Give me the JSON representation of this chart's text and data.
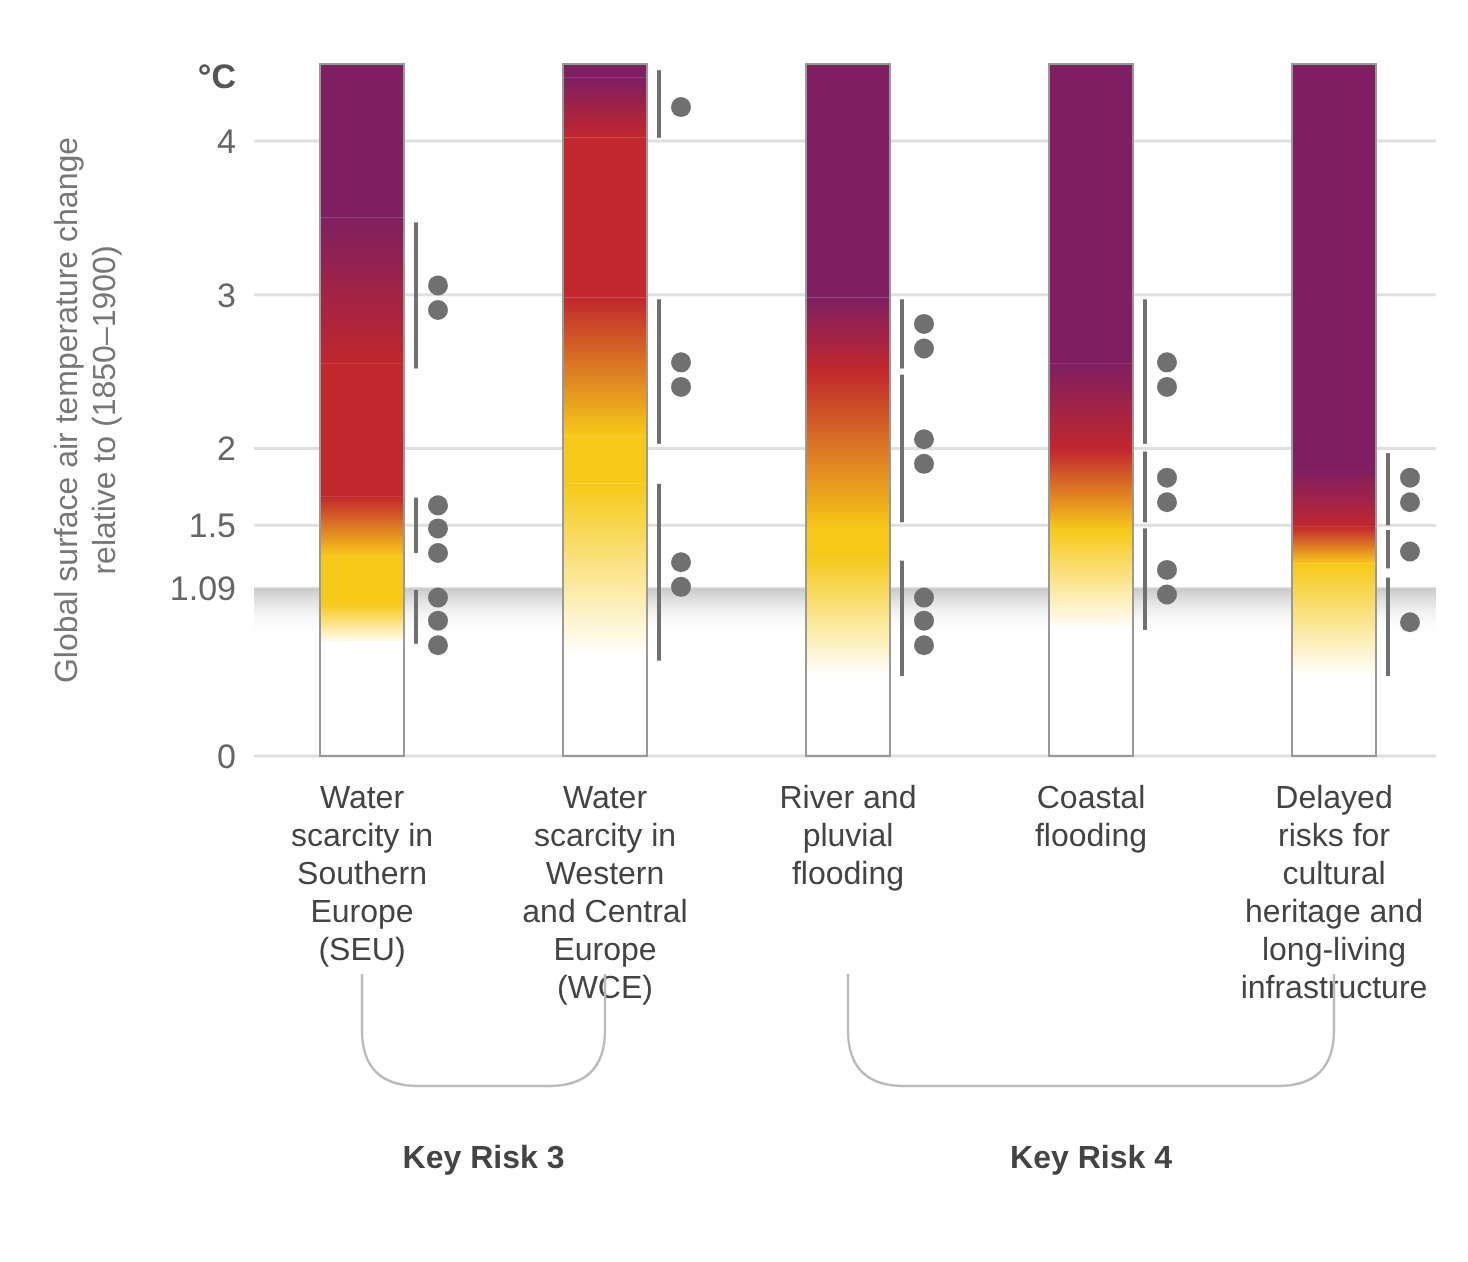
{
  "chart_data": {
    "type": "bar",
    "ylabel": "Global surface air temperature change relative to (1850–1900)",
    "categories": [
      "Water scarcity in Southern Europe (SEU)",
      "Water scarcity in Western and Central Europe (WCE)",
      "River and pluvial flooding",
      "Coastal flooding",
      "Delayed risks for cultural heritage and long-living infrastructure"
    ],
    "ylim": [
      0,
      4.5
    ],
    "yticks": [
      0,
      1.09,
      1.5,
      2,
      3,
      4
    ],
    "grid": "y",
    "bands": [
      {
        "axis": "y",
        "from": 0.78,
        "to": 1.09,
        "color": "#c8c8c8"
      }
    ],
    "annotations": [
      "°C",
      "Key Risk 3",
      "Key Risk 4"
    ],
    "series": [
      {
        "color": "#f6c918",
        "base": [
          0.73,
          0.65,
          0.52,
          0.82,
          0.52
        ],
        "values": [
          0.26,
          1.12,
          0.78,
          0.65,
          0.73
        ]
      },
      {
        "color": "#f6c918",
        "base": [
          0.99,
          1.77,
          1.3,
          null,
          null
        ],
        "values": [
          0.31,
          0.31,
          0.17,
          null,
          null
        ]
      },
      {
        "color": "#c1272d",
        "base": [
          1.3,
          2.08,
          1.47,
          1.47,
          1.25
        ],
        "values": [
          0.39,
          0.9,
          1.04,
          0.52,
          0.24
        ]
      },
      {
        "color": "#c1272d",
        "base": [
          1.69,
          2.98,
          null,
          null,
          null
        ],
        "values": [
          0.86,
          1.04,
          null,
          null,
          null
        ]
      },
      {
        "color": "#7f1f61",
        "base": [
          2.55,
          4.02,
          2.51,
          1.99,
          1.49
        ],
        "values": [
          0.95,
          0.39,
          0.47,
          0.56,
          0.37
        ]
      },
      {
        "color": "#7f1f61",
        "base": [
          3.5,
          4.41,
          2.98,
          2.55,
          1.86
        ],
        "values": [
          1.0,
          0.09,
          1.52,
          1.95,
          2.64
        ]
      },
      {
        "type": "scatter",
        "marker": "circle",
        "color": "#707070",
        "x": [
          "Water scarcity in Southern Europe (SEU)",
          "Water scarcity in Southern Europe (SEU)",
          "Water scarcity in Southern Europe (SEU)",
          "Water scarcity in Southern Europe (SEU)",
          "Water scarcity in Southern Europe (SEU)",
          "Water scarcity in Southern Europe (SEU)",
          "Water scarcity in Southern Europe (SEU)",
          "Water scarcity in Southern Europe (SEU)",
          "Water scarcity in Western and Central Europe (WCE)",
          "Water scarcity in Western and Central Europe (WCE)",
          "Water scarcity in Western and Central Europe (WCE)",
          "Water scarcity in Western and Central Europe (WCE)",
          "Water scarcity in Western and Central Europe (WCE)",
          "River and pluvial flooding",
          "River and pluvial flooding",
          "River and pluvial flooding",
          "River and pluvial flooding",
          "River and pluvial flooding",
          "River and pluvial flooding",
          "River and pluvial flooding",
          "Coastal flooding",
          "Coastal flooding",
          "Coastal flooding",
          "Coastal flooding",
          "Coastal flooding",
          "Coastal flooding",
          "Delayed risks for cultural heritage and long-living infrastructure",
          "Delayed risks for cultural heritage and long-living infrastructure",
          "Delayed risks for cultural heritage and long-living infrastructure",
          "Delayed risks for cultural heritage and long-living infrastructure"
        ],
        "values": [
          3.06,
          2.9,
          1.63,
          1.48,
          1.32,
          1.03,
          0.88,
          0.72,
          4.22,
          2.56,
          2.4,
          1.26,
          1.1,
          2.81,
          2.65,
          2.06,
          1.9,
          1.03,
          0.88,
          0.72,
          2.56,
          2.4,
          1.81,
          1.65,
          1.21,
          1.05,
          1.81,
          1.65,
          1.33,
          0.87
        ]
      },
      {
        "color": "#707070",
        "base": [
          2.52,
          4.02,
          2.52,
          2.03,
          1.5
        ],
        "values": [
          0.95,
          0.44,
          0.45,
          0.94,
          0.47
        ]
      },
      {
        "color": "#707070",
        "base": [
          1.32,
          2.03,
          1.52,
          1.52,
          1.22
        ],
        "values": [
          0.36,
          0.94,
          0.96,
          0.46,
          0.25
        ]
      },
      {
        "color": "#707070",
        "base": [
          0.73,
          0.62,
          0.52,
          0.82,
          0.52
        ],
        "values": [
          0.35,
          1.15,
          0.75,
          0.66,
          0.64
        ]
      }
    ]
  }
}
